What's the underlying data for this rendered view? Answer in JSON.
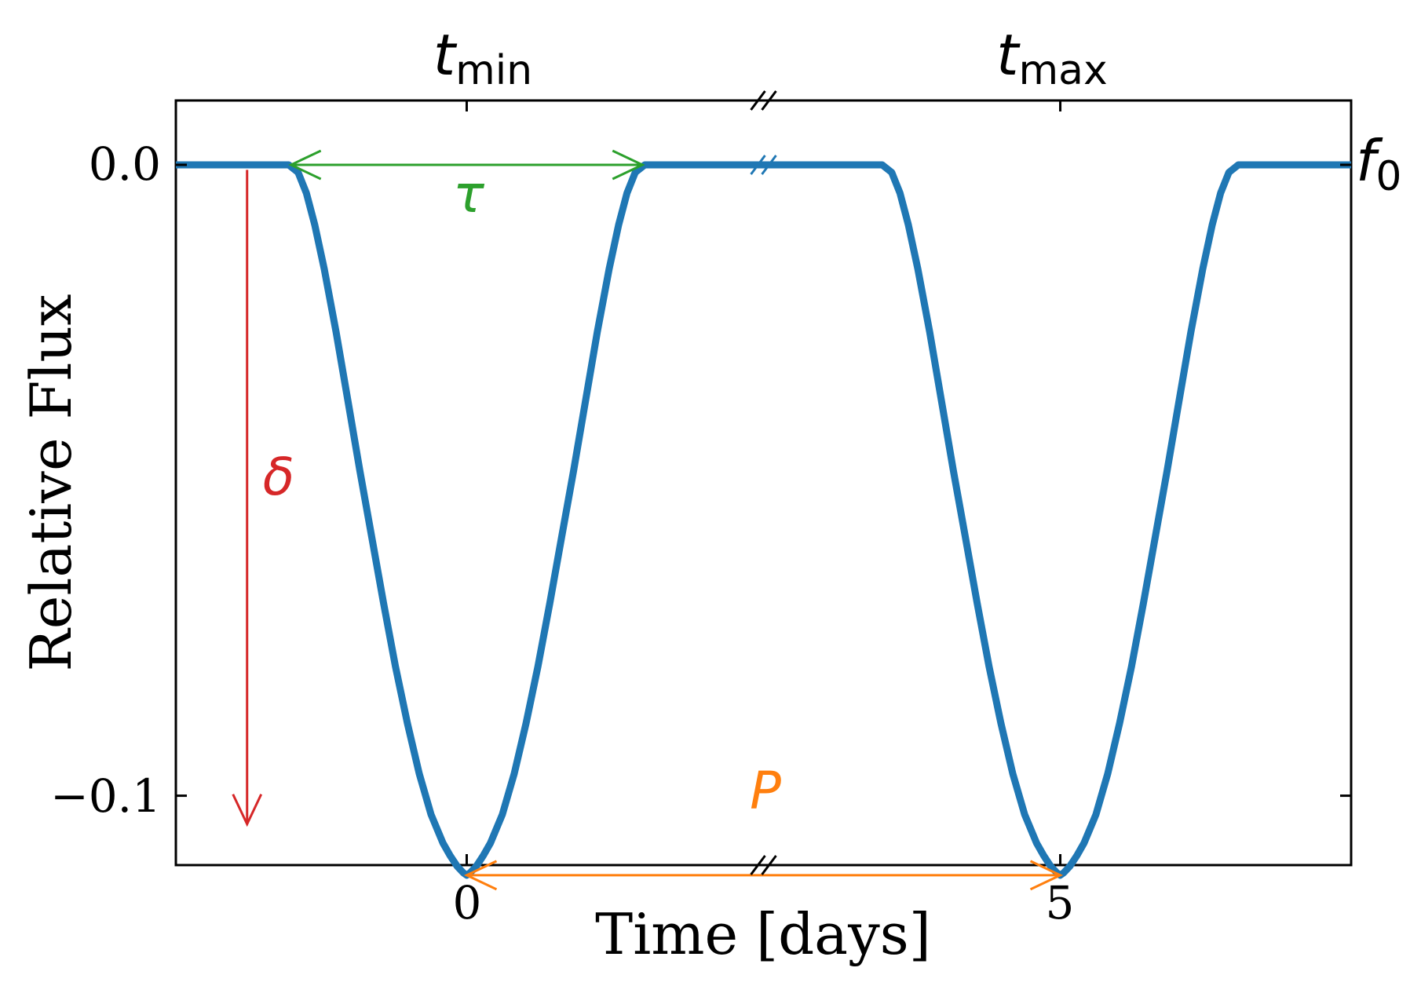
{
  "chart_data": {
    "type": "line",
    "title": "",
    "xlabel": "Time [days]",
    "ylabel": "Relative Flux",
    "x_ticks": [
      {
        "value": 0,
        "label": "0"
      },
      {
        "value": 5,
        "label": "5"
      }
    ],
    "y_ticks": [
      {
        "value": 0.0,
        "label": "0.0"
      },
      {
        "value": -0.1,
        "label": "−0.1"
      }
    ],
    "xlim": [
      -2.45,
      7.45
    ],
    "ylim": [
      -0.111,
      0.0102
    ],
    "axis_break_x": 2.5,
    "grid": false,
    "series": [
      {
        "color": "#1f77b4",
        "x": [
          -2.45,
          -1.5,
          -1.42,
          -1.35,
          -1.28,
          -1.2,
          -1.1,
          -1.0,
          -0.9,
          -0.8,
          -0.7,
          -0.6,
          -0.5,
          -0.4,
          -0.3,
          -0.2,
          -0.14,
          -0.08,
          -0.03,
          0.0,
          0.03,
          0.08,
          0.14,
          0.2,
          0.3,
          0.4,
          0.5,
          0.6,
          0.7,
          0.8,
          0.9,
          1.0,
          1.1,
          1.2,
          1.28,
          1.35,
          1.42,
          1.5,
          2.5,
          3.5,
          3.58,
          3.65,
          3.72,
          3.8,
          3.9,
          4.0,
          4.1,
          4.2,
          4.3,
          4.4,
          4.5,
          4.6,
          4.7,
          4.8,
          4.86,
          4.92,
          4.97,
          5.0,
          5.03,
          5.08,
          5.14,
          5.2,
          5.3,
          5.4,
          5.5,
          5.6,
          5.7,
          5.8,
          5.9,
          6.0,
          6.1,
          6.2,
          6.28,
          6.35,
          6.42,
          6.5,
          7.45
        ],
        "y": [
          0.0,
          0.0,
          -0.0012,
          -0.0045,
          -0.0095,
          -0.0165,
          -0.0265,
          -0.0375,
          -0.0485,
          -0.059,
          -0.0695,
          -0.0795,
          -0.0885,
          -0.0965,
          -0.103,
          -0.1075,
          -0.1095,
          -0.1112,
          -0.1122,
          -0.1126,
          -0.1122,
          -0.1112,
          -0.1095,
          -0.1075,
          -0.103,
          -0.0965,
          -0.0885,
          -0.0795,
          -0.0695,
          -0.059,
          -0.0485,
          -0.0375,
          -0.0265,
          -0.0165,
          -0.0095,
          -0.0045,
          -0.0012,
          0.0,
          0.0,
          0.0,
          -0.0012,
          -0.0045,
          -0.0095,
          -0.0165,
          -0.0265,
          -0.0375,
          -0.0485,
          -0.059,
          -0.0695,
          -0.0795,
          -0.0885,
          -0.0965,
          -0.103,
          -0.1075,
          -0.1095,
          -0.1112,
          -0.1122,
          -0.1126,
          -0.1122,
          -0.1112,
          -0.1095,
          -0.1075,
          -0.103,
          -0.0965,
          -0.0885,
          -0.0795,
          -0.0695,
          -0.059,
          -0.0485,
          -0.0375,
          -0.0265,
          -0.0165,
          -0.0095,
          -0.0045,
          -0.0012,
          0.0,
          0.0
        ]
      }
    ],
    "annotations": {
      "top_left": {
        "base": "t",
        "sub": "min",
        "x": 0
      },
      "top_right": {
        "base": "t",
        "sub": "max",
        "x": 5
      },
      "right": {
        "base": "f",
        "sub": "0",
        "y": 0.0
      },
      "tau": {
        "label": "τ",
        "color": "#2ca02c",
        "x_from": -1.48,
        "x_to": 1.48,
        "y": 0.0
      },
      "delta": {
        "label": "δ",
        "color": "#d62728",
        "x": -1.85,
        "y_from": -0.0008,
        "y_to": -0.1045
      },
      "period": {
        "label": "P",
        "color": "#ff7f0e",
        "x_from": 0.0,
        "x_to": 5.0,
        "y": -0.1126
      }
    }
  }
}
